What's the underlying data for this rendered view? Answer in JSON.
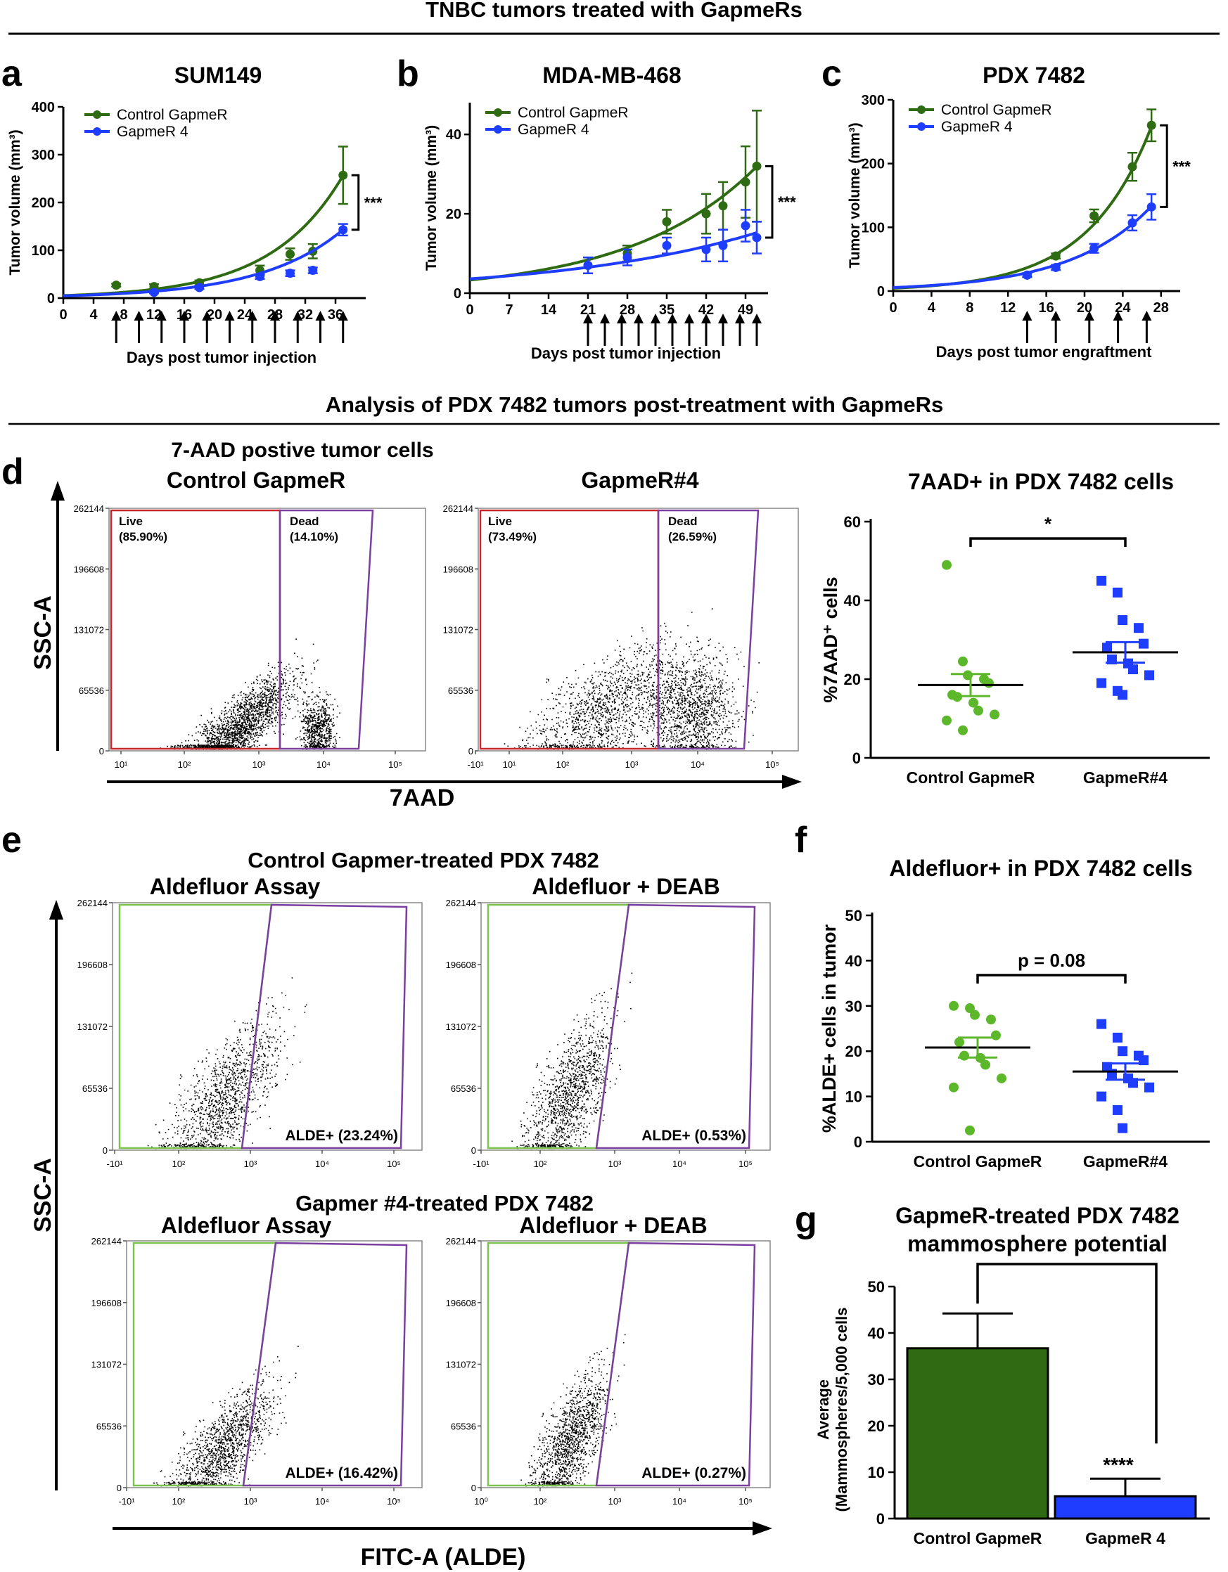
{
  "figure": {
    "section1_title": "TNBC tumors treated with GapmeRs",
    "section2_title": "Analysis of PDX 7482 tumors post-treatment with GapmeRs",
    "colors": {
      "green": "#2f6b12",
      "blue": "#1f3dff",
      "lightgreen": "#5cb82a",
      "red": "#c8262c",
      "purple": "#7b3fa0",
      "gate_green": "#7cc450"
    }
  },
  "panels": {
    "a": {
      "letter": "a"
    },
    "b": {
      "letter": "b"
    },
    "c": {
      "letter": "c"
    },
    "d": {
      "letter": "d",
      "subtitle": "7-AAD postive tumor cells",
      "xlabel": "7AAD",
      "ylabel": "SSC-A"
    },
    "e": {
      "letter": "e",
      "title_top": "Control Gapmer-treated PDX 7482",
      "title_bottom": "Gapmer #4-treated PDX 7482",
      "xlabel": "FITC-A (ALDE)",
      "ylabel": "SSC-A"
    },
    "f": {
      "letter": "f"
    },
    "g": {
      "letter": "g"
    }
  },
  "chart_data": [
    {
      "id": "a",
      "type": "line",
      "title": "SUM149",
      "xlabel": "Days post tumor injection",
      "ylabel": "Tumor volume (mm³)",
      "xlim": [
        0,
        40
      ],
      "ylim": [
        0,
        400
      ],
      "xticks": [
        "0",
        "4",
        "8",
        "12",
        "16",
        "20",
        "24",
        "28",
        "32",
        "36"
      ],
      "yticks": [
        "0",
        "100",
        "200",
        "300",
        "400"
      ],
      "dosing_days": [
        7,
        10,
        13,
        16,
        19,
        22,
        25,
        28,
        31,
        34,
        37
      ],
      "significance": "***",
      "series": [
        {
          "name": "Control GapmeR",
          "color": "#2f6b12",
          "x": [
            7,
            12,
            18,
            26,
            30,
            33,
            37
          ],
          "y": [
            27,
            24,
            32,
            58,
            92,
            98,
            257
          ],
          "err": [
            3,
            5,
            5,
            10,
            12,
            15,
            60
          ],
          "fit": {
            "a": 5.27,
            "k": 0.105
          }
        },
        {
          "name": "GapmeR 4",
          "color": "#1f3dff",
          "x": [
            12,
            18,
            26,
            30,
            33,
            37
          ],
          "y": [
            12,
            22,
            45,
            52,
            58,
            143
          ],
          "err": [
            2,
            3,
            5,
            6,
            6,
            12
          ],
          "fit": {
            "a": 4.67,
            "k": 0.0925
          }
        }
      ]
    },
    {
      "id": "b",
      "type": "line",
      "title": "MDA-MB-468",
      "xlabel": "Days post tumor injection",
      "ylabel": "Tumor volume (mm³)",
      "xlim": [
        0,
        53
      ],
      "ylim": [
        0,
        48
      ],
      "xticks": [
        "0",
        "7",
        "14",
        "21",
        "28",
        "35",
        "42",
        "49"
      ],
      "yticks": [
        "0",
        "20",
        "40"
      ],
      "dosing_days": [
        21,
        24,
        27,
        30,
        33,
        36,
        39,
        42,
        45,
        48,
        51
      ],
      "significance": "***",
      "series": [
        {
          "name": "Control GapmeR",
          "color": "#2f6b12",
          "x": [
            21,
            28,
            35,
            42,
            45,
            49,
            51
          ],
          "y": [
            7,
            10,
            18,
            20,
            22,
            28,
            32
          ],
          "err": [
            2,
            2,
            3,
            5,
            6,
            9,
            14
          ],
          "fit": {
            "a": 3.3,
            "k": 0.0445
          }
        },
        {
          "name": "GapmeR 4",
          "color": "#1f3dff",
          "x": [
            21,
            28,
            35,
            42,
            45,
            49,
            51
          ],
          "y": [
            7,
            9,
            12,
            11,
            12,
            17,
            14
          ],
          "err": [
            2,
            2,
            2,
            3,
            4,
            4,
            4
          ],
          "fit": {
            "a": 3.6,
            "k": 0.0283
          }
        }
      ]
    },
    {
      "id": "c",
      "type": "line",
      "title": "PDX 7482",
      "xlabel": "Days post tumor engraftment",
      "ylabel": "Tumor volume (mm³)",
      "xlim": [
        0,
        30
      ],
      "ylim": [
        0,
        300
      ],
      "xticks": [
        "0",
        "4",
        "8",
        "12",
        "16",
        "20",
        "24",
        "28"
      ],
      "yticks": [
        "0",
        "100",
        "200",
        "300"
      ],
      "dosing_days": [
        14,
        17,
        20.5,
        23.5,
        26.5
      ],
      "significance": "***",
      "series": [
        {
          "name": "Control GapmeR",
          "color": "#2f6b12",
          "x": [
            14,
            17,
            21,
            25,
            27
          ],
          "y": [
            25,
            55,
            118,
            195,
            260
          ],
          "err": [
            3,
            4,
            10,
            22,
            25
          ],
          "fit": {
            "a": 4.5,
            "k": 0.15
          }
        },
        {
          "name": "GapmeR 4",
          "color": "#1f3dff",
          "x": [
            14,
            17,
            21,
            25,
            27
          ],
          "y": [
            25,
            37,
            67,
            107,
            132
          ],
          "err": [
            3,
            4,
            7,
            12,
            20
          ],
          "fit": {
            "a": 5.5,
            "k": 0.118
          }
        }
      ]
    },
    {
      "id": "d_ctrl",
      "type": "scatter",
      "title": "Control GapmeR",
      "yticks": [
        "0",
        "65536",
        "131072",
        "196608",
        "262144"
      ],
      "xticks": [
        "10¹",
        "10²",
        "10³",
        "10⁴",
        "10⁵"
      ],
      "gates": [
        {
          "name": "Live",
          "pct": "(85.90%)"
        },
        {
          "name": "Dead",
          "pct": "(14.10%)"
        }
      ]
    },
    {
      "id": "d_gap4",
      "type": "scatter",
      "title": "GapmeR#4",
      "yticks": [
        "0",
        "65536",
        "131072",
        "196608",
        "262144"
      ],
      "xticks": [
        "-10¹",
        "10¹",
        "10²",
        "10³",
        "10⁴",
        "10⁵"
      ],
      "gates": [
        {
          "name": "Live",
          "pct": "(73.49%)"
        },
        {
          "name": "Dead",
          "pct": "(26.59%)"
        }
      ]
    },
    {
      "id": "d_dot",
      "type": "scatter",
      "title": "7AAD+ in PDX 7482 cells",
      "ylabel": "%7AAD⁺ cells",
      "ylim": [
        0,
        60
      ],
      "yticks": [
        "0",
        "20",
        "40",
        "60"
      ],
      "categories": [
        "Control GapmeR",
        "GapmeR#4"
      ],
      "significance": "*",
      "groups": [
        {
          "name": "Control GapmeR",
          "color": "#5cb82a",
          "mean": 18.5,
          "sem": 2.8,
          "values": [
            49,
            24.5,
            21,
            20,
            19,
            16,
            15.5,
            14,
            12,
            11,
            9.5,
            7
          ]
        },
        {
          "name": "GapmeR#4",
          "color": "#1f3dff",
          "mean": 26.8,
          "sem": 2.6,
          "values": [
            45,
            42,
            35,
            33,
            29,
            28,
            25,
            24,
            22.5,
            21,
            19,
            17,
            16
          ]
        }
      ]
    },
    {
      "id": "e_ctrl_assay",
      "type": "scatter",
      "title": "Aldefluor Assay",
      "yticks": [
        "0",
        "65536",
        "131072",
        "196608",
        "262144"
      ],
      "xticks": [
        "-10¹",
        "10²",
        "10³",
        "10⁴",
        "10⁵"
      ],
      "gate_label": "ALDE+ (23.24%)"
    },
    {
      "id": "e_ctrl_deab",
      "type": "scatter",
      "title": "Aldefluor + DEAB",
      "yticks": [
        "0",
        "65536",
        "131072",
        "196608",
        "262144"
      ],
      "xticks": [
        "-10¹",
        "10²",
        "10³",
        "10⁴",
        "10⁵"
      ],
      "gate_label": "ALDE+ (0.53%)"
    },
    {
      "id": "e_g4_assay",
      "type": "scatter",
      "title": "Aldefluor Assay",
      "yticks": [
        "0",
        "65536",
        "131072",
        "196608",
        "262144"
      ],
      "xticks": [
        "-10¹",
        "10²",
        "10³",
        "10⁴",
        "10⁵"
      ],
      "gate_label": "ALDE+ (16.42%)"
    },
    {
      "id": "e_g4_deab",
      "type": "scatter",
      "title": "Aldefluor + DEAB",
      "yticks": [
        "0",
        "65536",
        "131072",
        "196608",
        "262144"
      ],
      "xticks": [
        "10⁰",
        "10²",
        "10³",
        "10⁴",
        "10⁵"
      ],
      "gate_label": "ALDE+ (0.27%)"
    },
    {
      "id": "f",
      "type": "scatter",
      "title": "Aldefluor+ in PDX 7482 cells",
      "ylabel": "%ALDE+ cells in tumor",
      "ylim": [
        0,
        50
      ],
      "yticks": [
        "0",
        "10",
        "20",
        "30",
        "40",
        "50"
      ],
      "categories": [
        "Control GapmeR",
        "GapmeR#4"
      ],
      "significance": "p = 0.08",
      "groups": [
        {
          "name": "Control GapmeR",
          "color": "#5cb82a",
          "mean": 20.8,
          "sem": 2.2,
          "values": [
            30,
            29.5,
            28,
            27,
            23.5,
            22,
            19,
            18.5,
            17,
            14,
            12,
            2.5
          ]
        },
        {
          "name": "GapmeR#4",
          "color": "#1f3dff",
          "mean": 15.5,
          "sem": 1.8,
          "values": [
            26,
            23,
            20,
            19,
            18,
            16.5,
            15,
            14,
            13,
            12,
            10,
            7,
            3
          ]
        }
      ]
    },
    {
      "id": "g",
      "type": "bar",
      "title": [
        "GapmeR-treated PDX 7482",
        "mammosphere potential"
      ],
      "ylabel": [
        "Average",
        "(Mammospheres/5,000 cells"
      ],
      "ylim": [
        0,
        50
      ],
      "yticks": [
        "0",
        "10",
        "20",
        "30",
        "40",
        "50"
      ],
      "categories": [
        "Control GapmeR",
        "GapmeR 4"
      ],
      "values": [
        36.7,
        4.8
      ],
      "err": [
        7.5,
        3.8
      ],
      "colors": [
        "#2f6b12",
        "#1f3dff"
      ],
      "significance": "****"
    }
  ]
}
